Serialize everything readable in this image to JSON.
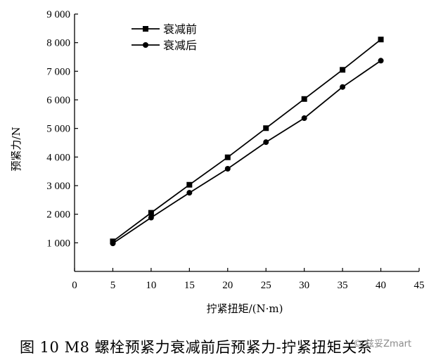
{
  "chart_data": {
    "type": "line",
    "title": "",
    "xlabel": "拧紧扭矩/(N·m)",
    "ylabel": "预紧力/N",
    "xlim": [
      0,
      45
    ],
    "ylim": [
      0,
      9000
    ],
    "x_ticks": [
      0,
      5,
      10,
      15,
      20,
      25,
      30,
      35,
      40,
      45
    ],
    "y_ticks": [
      1000,
      2000,
      3000,
      4000,
      5000,
      6000,
      7000,
      8000,
      9000
    ],
    "x_tick_labels": [
      "0",
      "5",
      "10",
      "15",
      "20",
      "25",
      "30",
      "35",
      "40",
      "45"
    ],
    "y_tick_labels": [
      "1 000",
      "2 000",
      "3 000",
      "4 000",
      "5 000",
      "6 000",
      "7 000",
      "8 000",
      "9 000"
    ],
    "x": [
      5,
      10,
      15,
      20,
      25,
      30,
      35,
      40
    ],
    "series": [
      {
        "name": "衰减前",
        "marker": "square",
        "values": [
          1050,
          2050,
          3030,
          3990,
          5010,
          6030,
          7050,
          8110
        ]
      },
      {
        "name": "衰减后",
        "marker": "circle",
        "values": [
          980,
          1880,
          2750,
          3590,
          4520,
          5360,
          6450,
          7370
        ]
      }
    ],
    "legend_position": "top-left",
    "grid": false,
    "line_color": "#000000"
  },
  "caption": "图 10    M8 螺栓预紧力衰减前后预紧力-拧紧扭矩关系",
  "watermark": "© 兹妥Zmart"
}
